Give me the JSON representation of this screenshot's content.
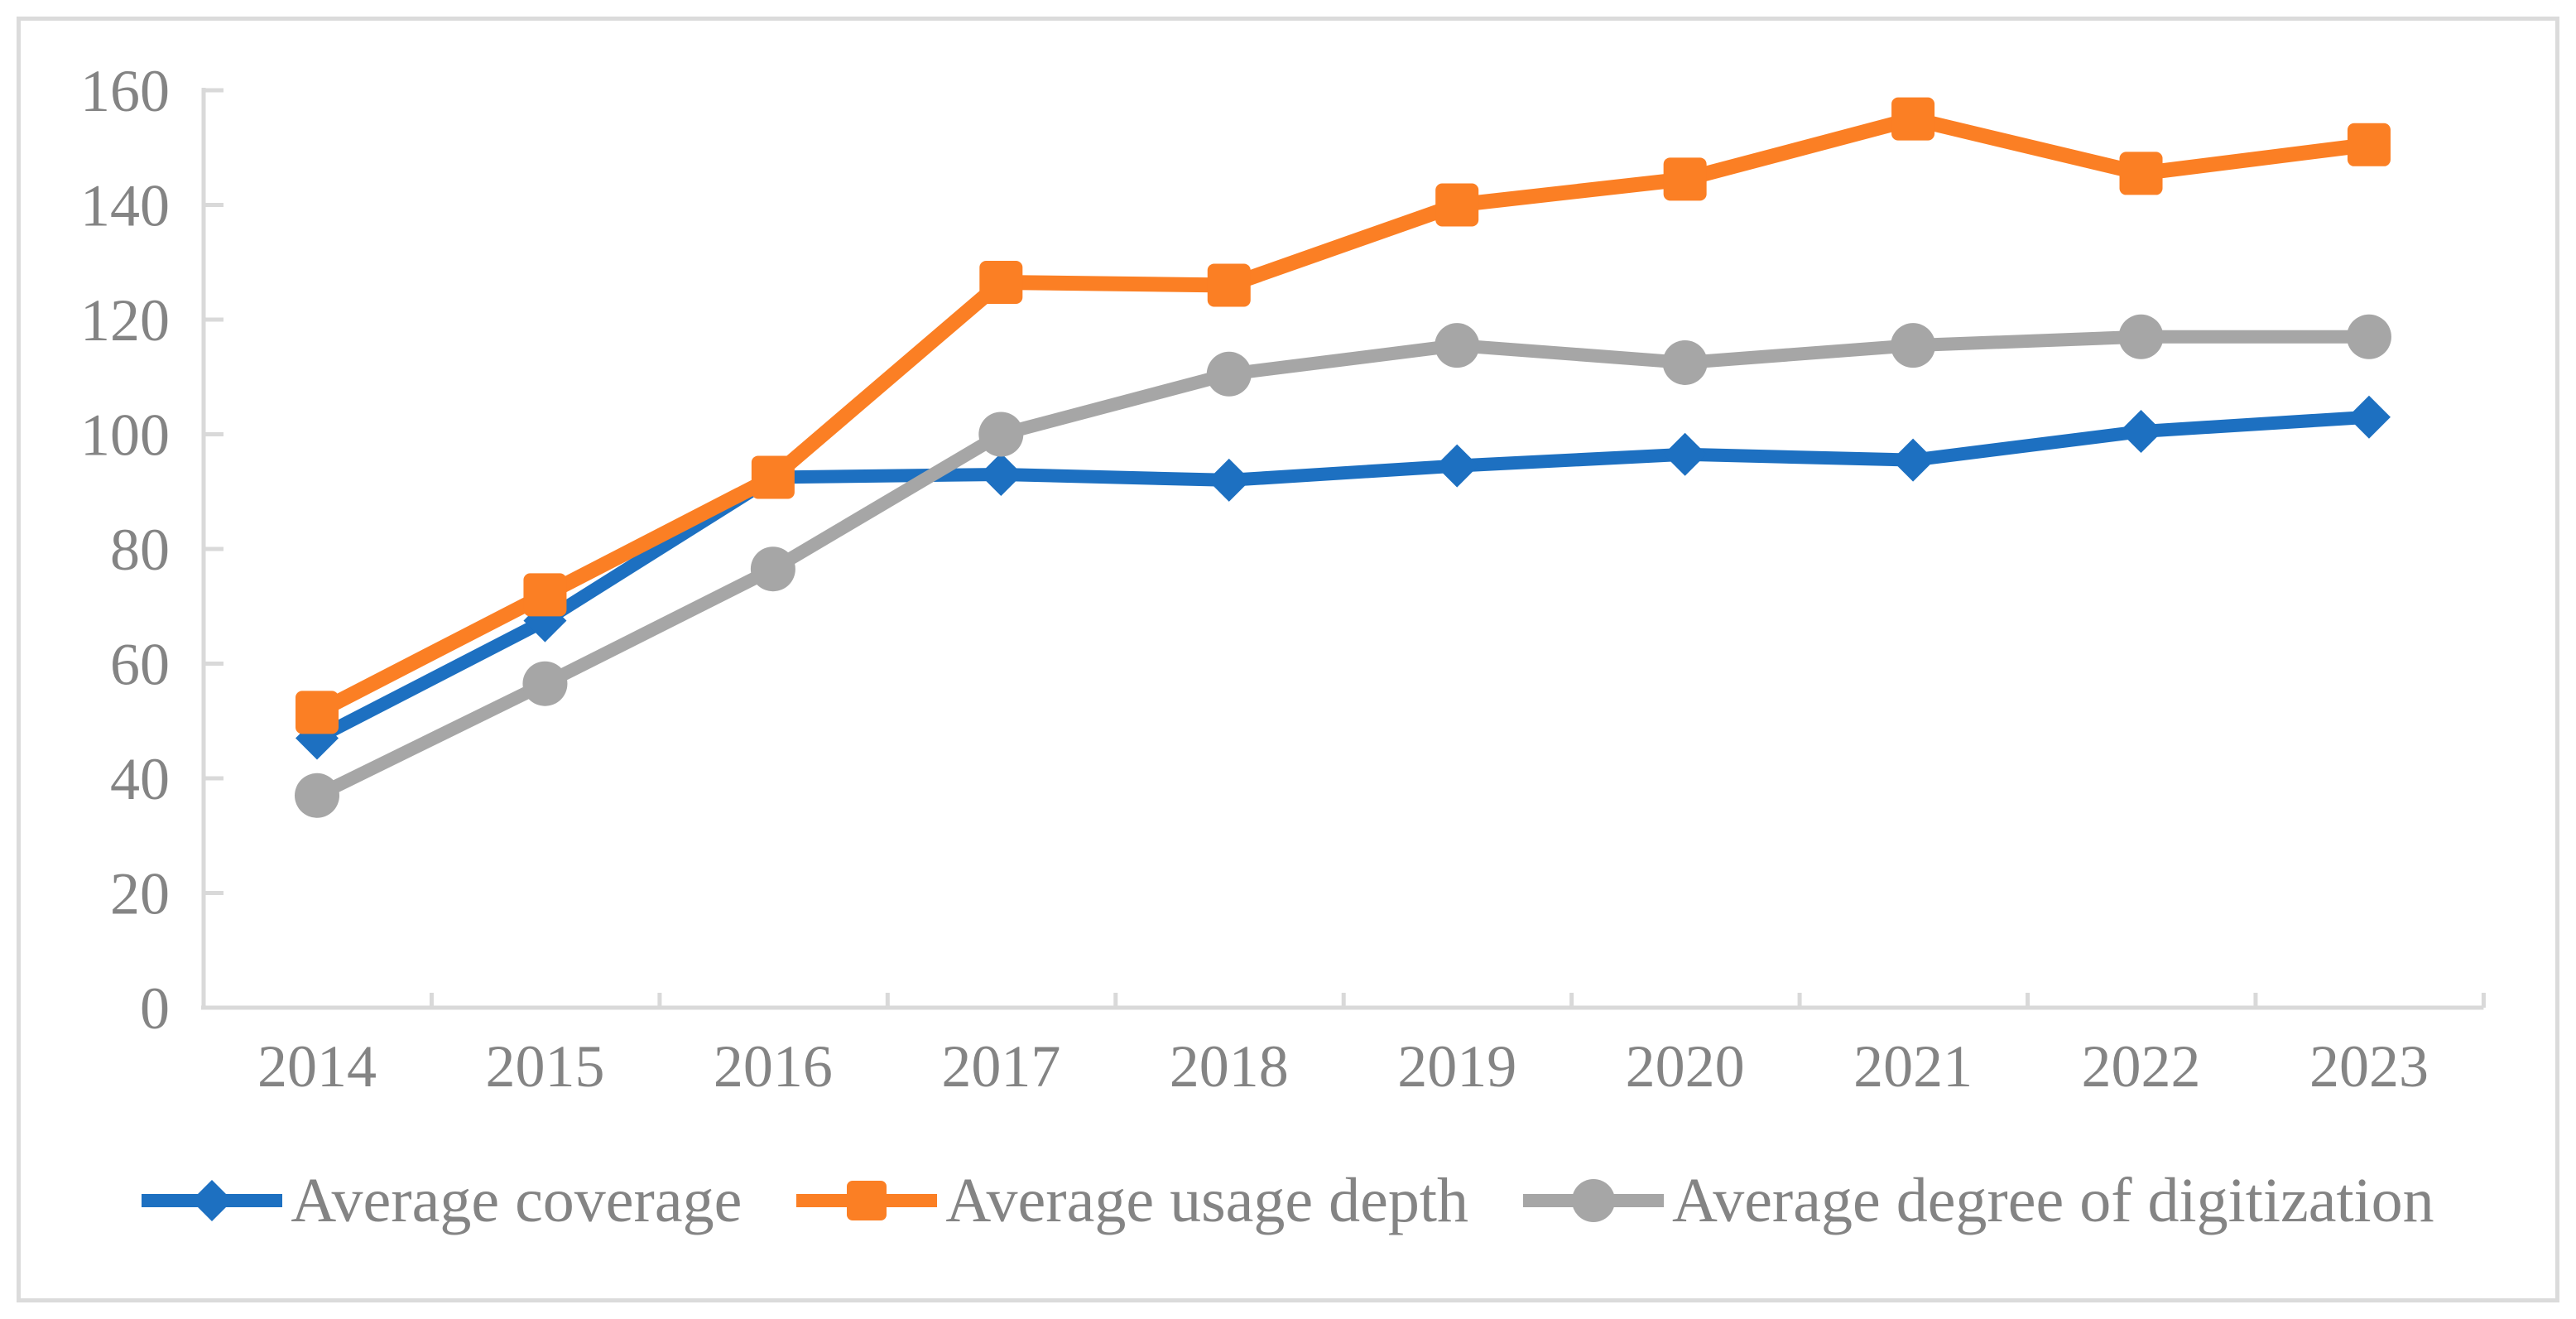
{
  "chart_data": {
    "type": "line",
    "title": "",
    "xlabel": "",
    "ylabel": "",
    "x": [
      "2014",
      "2015",
      "2016",
      "2017",
      "2018",
      "2019",
      "2020",
      "2021",
      "2022",
      "2023"
    ],
    "yticks": [
      0,
      20,
      40,
      60,
      80,
      100,
      120,
      140,
      160
    ],
    "ylim": [
      0,
      160
    ],
    "grid": false,
    "legend_position": "bottom",
    "series": [
      {
        "name": "Average coverage",
        "marker": "diamond",
        "color": "#1d70c1",
        "line_width": 16,
        "values": [
          47,
          67.5,
          92.5,
          93,
          92,
          94.5,
          96.5,
          95.5,
          100.5,
          103
        ]
      },
      {
        "name": "Average usage depth",
        "marker": "square",
        "color": "#fb7f24",
        "line_width": 18,
        "values": [
          51.5,
          72,
          92.5,
          126.5,
          126,
          140,
          144.5,
          155,
          145.5,
          150.5
        ]
      },
      {
        "name": "Average degree of digitization",
        "marker": "circle",
        "color": "#a6a6a6",
        "line_width": 16,
        "values": [
          37,
          56.5,
          76.5,
          100,
          110.5,
          115.5,
          112.5,
          115.5,
          117,
          117
        ]
      }
    ]
  },
  "style": {
    "axis_color": "#d9d9d9",
    "text_color": "#848484",
    "border_color": "#dbdbdb",
    "background": "#ffffff"
  }
}
